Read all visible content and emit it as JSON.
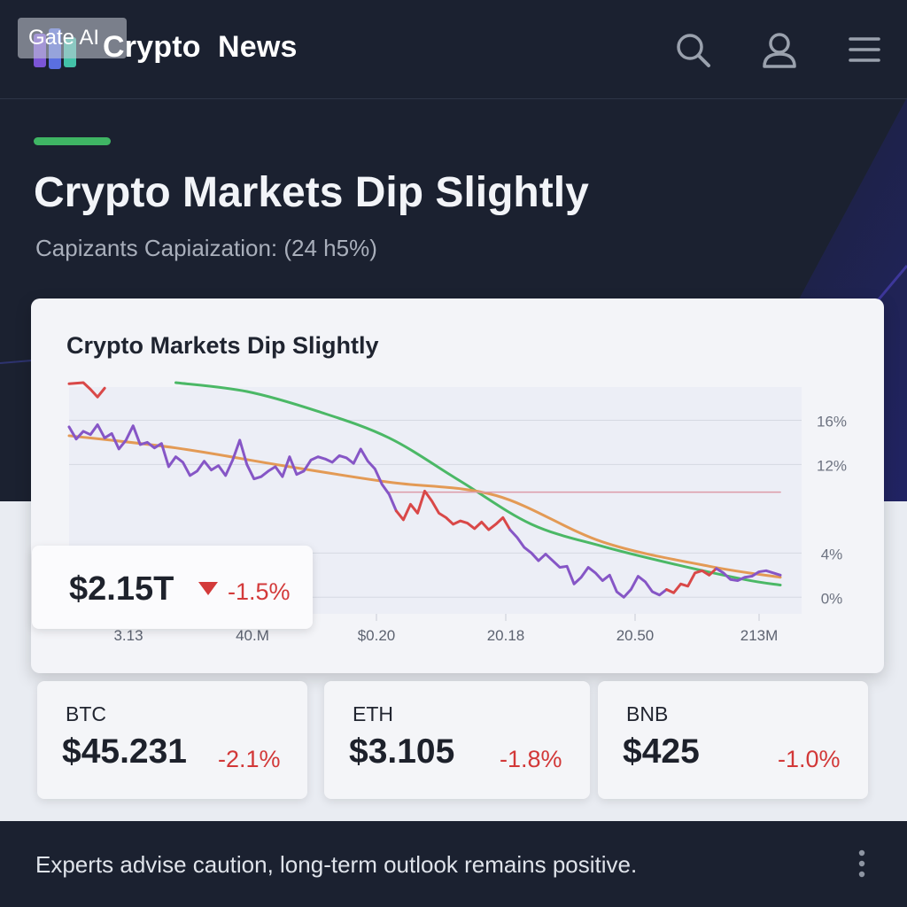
{
  "header": {
    "watermark": "Gate AI",
    "title": "Crypto  News",
    "icons": [
      "logo-icon",
      "search-icon",
      "user-icon",
      "menu-icon"
    ]
  },
  "hero": {
    "headline": "Crypto Markets Dip Slightly",
    "subline": "Capizants Capiaization: (24 h5%)"
  },
  "market_cap": {
    "value": "$2.15T",
    "change": "-1.5%",
    "direction": "down"
  },
  "chart_data": {
    "type": "line",
    "title": "Crypto Markets Dip Slightly",
    "x_tick_labels": [
      "3.13",
      "40.M",
      "$0.20",
      "20.18",
      "20.50",
      "213M"
    ],
    "y_tick_labels": [
      "16%",
      "12%",
      "4%",
      "0%"
    ],
    "y_ticks": [
      16,
      12,
      4,
      0
    ],
    "ylim": [
      -1.5,
      19
    ],
    "xlim": [
      0,
      100
    ],
    "grid": true,
    "series": [
      {
        "color": "#4bb866",
        "style": "smooth",
        "x": [
          15,
          25,
          35,
          45,
          55,
          65,
          75,
          85,
          95,
          100
        ],
        "values": [
          19.4,
          18.6,
          16.8,
          14.4,
          10.5,
          6.6,
          4.6,
          3.0,
          1.6,
          1.1
        ]
      },
      {
        "color": "#e39a55",
        "style": "smooth",
        "x": [
          0,
          15,
          30,
          45,
          60,
          75,
          90,
          100
        ],
        "values": [
          14.6,
          13.5,
          11.9,
          10.4,
          9.2,
          5.0,
          2.8,
          1.8
        ]
      },
      {
        "color": "#dc9aa8",
        "style": "straight",
        "x": [
          45,
          100
        ],
        "values": [
          9.5,
          9.5
        ]
      },
      {
        "color": "#d94848",
        "style": "jagged",
        "x": [
          0,
          2,
          3,
          4,
          5
        ],
        "values": [
          19.3,
          19.4,
          18.8,
          18.1,
          18.9
        ]
      },
      {
        "color": "#8656c6",
        "style": "jagged",
        "x": [
          0,
          1,
          2,
          3,
          4,
          5,
          6,
          7,
          8,
          9,
          10,
          11,
          12,
          13,
          14,
          15,
          16,
          17,
          18,
          19,
          20,
          21,
          22,
          23,
          24,
          25,
          26,
          27,
          28,
          29,
          30,
          31,
          32,
          33,
          34,
          35,
          36,
          37,
          38,
          39,
          40,
          41,
          42,
          43,
          44,
          45,
          46,
          47,
          48,
          49,
          50,
          51,
          52,
          53,
          54,
          55,
          56,
          57,
          58,
          59,
          60,
          61,
          62,
          63,
          64,
          65,
          66,
          67,
          68,
          69,
          70,
          71,
          72,
          73,
          74,
          75,
          76,
          77,
          78,
          79,
          80,
          81,
          82,
          83,
          84,
          85,
          86,
          87,
          88,
          89,
          90,
          91,
          92,
          93,
          94,
          95,
          96,
          97,
          98,
          99,
          100
        ],
        "values": [
          15.4,
          14.3,
          15.0,
          14.7,
          15.6,
          14.4,
          14.8,
          13.4,
          14.2,
          15.5,
          13.8,
          14.0,
          13.5,
          13.9,
          11.8,
          12.7,
          12.2,
          11.0,
          11.4,
          12.3,
          11.5,
          11.9,
          11.0,
          12.4,
          14.2,
          12.0,
          10.7,
          10.9,
          11.4,
          11.8,
          10.9,
          12.7,
          11.1,
          11.4,
          12.4,
          12.7,
          12.5,
          12.2,
          12.8,
          12.6,
          12.1,
          13.4,
          12.3,
          11.6,
          10.2,
          9.3,
          7.8,
          7.0,
          8.4,
          7.6,
          9.6,
          8.7,
          7.6,
          7.2,
          6.6,
          6.9,
          6.7,
          6.2,
          6.8,
          6.1,
          6.6,
          7.2,
          6.1,
          5.4,
          4.5,
          4.0,
          3.3,
          3.9,
          3.3,
          2.7,
          2.8,
          1.2,
          1.8,
          2.7,
          2.2,
          1.5,
          2.0,
          0.5,
          0.0,
          0.7,
          1.9,
          1.4,
          0.5,
          0.2,
          0.7,
          0.4,
          1.2,
          1.0,
          2.2,
          2.4,
          2.0,
          2.6,
          2.2,
          1.6,
          1.5,
          1.8,
          1.9,
          2.3,
          2.4,
          2.2,
          2.0
        ],
        "segment_colors": [
          {
            "from": 0,
            "to": 46,
            "color": "#8656c6"
          },
          {
            "from": 46,
            "to": 62,
            "color": "#d94848"
          },
          {
            "from": 62,
            "to": 84,
            "color": "#8656c6"
          },
          {
            "from": 84,
            "to": 91,
            "color": "#d94848"
          },
          {
            "from": 91,
            "to": 100,
            "color": "#8656c6"
          }
        ]
      }
    ]
  },
  "coins": [
    {
      "symbol": "BTC",
      "price": "$45.231",
      "change": "-2.1%"
    },
    {
      "symbol": "ETH",
      "price": "$3.105",
      "change": "-1.8%"
    },
    {
      "symbol": "BNB",
      "price": "$425",
      "change": "-1.0%"
    }
  ],
  "footer": {
    "text": "Experts advise caution, long-term outlook remains positive."
  },
  "colors": {
    "background_dark": "#1b2130",
    "accent_green": "#3fb564",
    "negative_red": "#d33a3a",
    "purple_series": "#8656c6"
  }
}
